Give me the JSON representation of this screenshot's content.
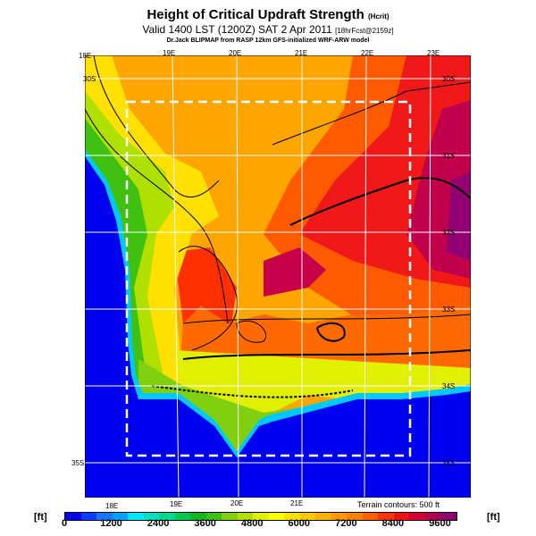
{
  "title": {
    "main": "Height of Critical Updraft Strength",
    "param": "(Hcrit)",
    "valid": "Valid 1400 LST (1200Z) SAT 2 Apr 2011",
    "fcst": "[18hrFcst@2159z]",
    "credit": "Dr.Jack BLIPMAP from RASP 12km GFS-initialized WRF-ARW model"
  },
  "map": {
    "lon_labels_top": [
      "18E",
      "19E",
      "20E",
      "21E",
      "22E",
      "23E"
    ],
    "lon_labels_bottom": [
      "18E",
      "19E",
      "20E",
      "21E"
    ],
    "lat_labels": [
      "30S",
      "31S",
      "32S",
      "33S",
      "34S",
      "35S"
    ],
    "terrain_note": "Terrain contours: 500 ft"
  },
  "colorbar": {
    "unit_left": "[ft]",
    "unit_right": "[ft]",
    "tick_labels": [
      "0",
      "1200",
      "2400",
      "3600",
      "4800",
      "6000",
      "7200",
      "8400",
      "9600"
    ],
    "tick_values": [
      0,
      1200,
      2400,
      3600,
      4800,
      6000,
      7200,
      8400,
      9600
    ],
    "min": 0,
    "max": 10000,
    "colors": [
      "#0000f0",
      "#0a3cff",
      "#1478ff",
      "#00a0ff",
      "#00e6ff",
      "#00e0c0",
      "#00d890",
      "#00c850",
      "#10b820",
      "#40c010",
      "#80d010",
      "#b0e000",
      "#e0f000",
      "#ffff00",
      "#ffe000",
      "#ffc800",
      "#ffb000",
      "#ff9800",
      "#ff8000",
      "#ff6000",
      "#ff3800",
      "#f01010",
      "#d00030",
      "#b00050",
      "#900070"
    ]
  }
}
